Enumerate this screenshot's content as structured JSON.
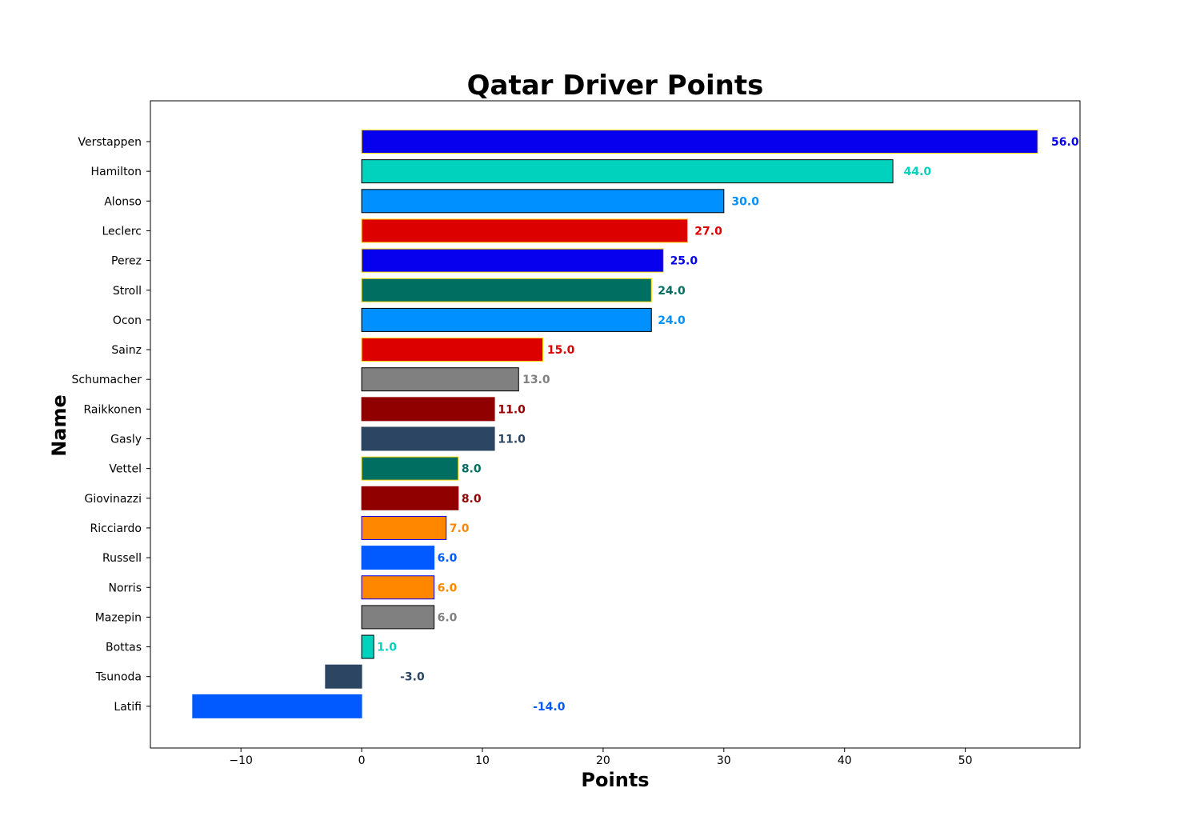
{
  "chart_data": {
    "type": "bar",
    "orientation": "horizontal",
    "title": "Qatar Driver Points",
    "xlabel": "Points",
    "ylabel": "Name",
    "xlim": [
      -17.5,
      59.5
    ],
    "xticks": [
      -10,
      0,
      10,
      20,
      30,
      40,
      50
    ],
    "grid": false,
    "legend": "none",
    "categories": [
      "Verstappen",
      "Hamilton",
      "Alonso",
      "Leclerc",
      "Perez",
      "Stroll",
      "Ocon",
      "Sainz",
      "Schumacher",
      "Raikkonen",
      "Gasly",
      "Vettel",
      "Giovinazzi",
      "Ricciardo",
      "Russell",
      "Norris",
      "Mazepin",
      "Bottas",
      "Tsunoda",
      "Latifi"
    ],
    "values": [
      56,
      44,
      30,
      27,
      25,
      24,
      24,
      15,
      13,
      11,
      11,
      8,
      8,
      7,
      6,
      6,
      6,
      1,
      -3,
      -14
    ],
    "value_labels": [
      "56.0",
      "44.0",
      "30.0",
      "27.0",
      "25.0",
      "24.0",
      "24.0",
      "15.0",
      "13.0",
      "11.0",
      "11.0",
      "8.0",
      "8.0",
      "7.0",
      "6.0",
      "6.0",
      "6.0",
      "1.0",
      "-3.0",
      "-14.0"
    ],
    "bar_colors": [
      "#0600EF",
      "#00D2BE",
      "#0090FF",
      "#DC0000",
      "#0600EF",
      "#006F62",
      "#0090FF",
      "#DC0000",
      "#808080",
      "#900000",
      "#2B4562",
      "#006F62",
      "#900000",
      "#FF8700",
      "#005AFF",
      "#FF8700",
      "#808080",
      "#00D2BE",
      "#2B4562",
      "#005AFF"
    ],
    "edge_colors": [
      "#FFD700",
      "#000000",
      "#000000",
      "#FFD700",
      "#FFD700",
      "#FFD700",
      "#000000",
      "#FFD700",
      "#000000",
      "#900000",
      "#2B4562",
      "#FFD700",
      "#900000",
      "#0600EF",
      "#005AFF",
      "#0600EF",
      "#000000",
      "#000000",
      "#2B4562",
      "#005AFF"
    ],
    "label_colors": [
      "#0600EF",
      "#00D2BE",
      "#0090FF",
      "#DC0000",
      "#0600EF",
      "#006F62",
      "#0090FF",
      "#DC0000",
      "#808080",
      "#900000",
      "#2B4562",
      "#006F62",
      "#900000",
      "#FF8700",
      "#005AFF",
      "#FF8700",
      "#808080",
      "#00D2BE",
      "#2B4562",
      "#005AFF"
    ]
  }
}
